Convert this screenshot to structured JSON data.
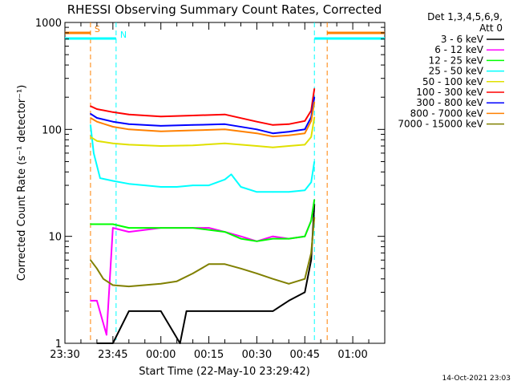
{
  "chart_data": {
    "type": "line",
    "title": "RHESSI Observing Summary Count Rates, Corrected",
    "xlabel": "Start Time (22-May-10 23:29:42)",
    "ylabel": "Corrected Count Rate (s⁻¹ detector⁻¹)",
    "y_scale": "log",
    "ylim": [
      1,
      1000
    ],
    "xlim": [
      "23:30",
      "01:10"
    ],
    "x_ticks": [
      "23:30",
      "23:45",
      "00:00",
      "00:15",
      "00:30",
      "00:45",
      "01:00"
    ],
    "y_ticks": [
      "1",
      "10",
      "100",
      "1000"
    ],
    "legend_header": [
      "Det 1,3,4,5,6,9,",
      "Att 0"
    ],
    "legend_position": "right",
    "footer": "14-Oct-2021 23:03",
    "flags": [
      {
        "label": "S",
        "color": "#ff8000",
        "intervals": [
          [
            "23:30",
            "23:38"
          ],
          [
            "00:52",
            "01:10"
          ]
        ]
      },
      {
        "label": "N",
        "color": "#00ffff",
        "intervals": [
          [
            "23:30",
            "23:46"
          ],
          [
            "00:48",
            "01:10"
          ]
        ]
      }
    ],
    "series": [
      {
        "name": "3 - 6 keV",
        "color": "#000000",
        "x": [
          "23:40",
          "23:45",
          "23:50",
          "00:00",
          "00:06",
          "00:08",
          "00:15",
          "00:25",
          "00:35",
          "00:40",
          "00:45",
          "00:47",
          "00:48"
        ],
        "y": [
          1,
          1,
          2,
          2,
          1,
          2,
          2,
          2,
          2,
          2.5,
          3,
          6,
          20
        ]
      },
      {
        "name": "6 - 12 keV",
        "color": "#ff00ff",
        "x": [
          "23:38",
          "23:40",
          "23:43",
          "23:45",
          "23:50",
          "00:00",
          "00:10",
          "00:15",
          "00:20",
          "00:25",
          "00:30",
          "00:35",
          "00:40",
          "00:45",
          "00:47",
          "00:48"
        ],
        "y": [
          2.5,
          2.5,
          1.2,
          12,
          11,
          12,
          12,
          12,
          11,
          10,
          9,
          10,
          9.5,
          10,
          14,
          22
        ]
      },
      {
        "name": "12 - 25 keV",
        "color": "#00ff00",
        "x": [
          "23:38",
          "23:45",
          "23:50",
          "00:00",
          "00:10",
          "00:20",
          "00:25",
          "00:30",
          "00:35",
          "00:40",
          "00:45",
          "00:47",
          "00:48"
        ],
        "y": [
          13,
          13,
          12,
          12,
          12,
          11,
          9.5,
          9,
          9.5,
          9.5,
          10,
          14,
          22
        ]
      },
      {
        "name": "25 - 50 keV",
        "color": "#00ffff",
        "x": [
          "23:38",
          "23:39",
          "23:41",
          "23:45",
          "23:50",
          "23:55",
          "00:00",
          "00:05",
          "00:10",
          "00:15",
          "00:20",
          "00:22",
          "00:25",
          "00:30",
          "00:35",
          "00:40",
          "00:45",
          "00:47",
          "00:48"
        ],
        "y": [
          110,
          60,
          35,
          33,
          31,
          30,
          29,
          29,
          30,
          30,
          34,
          38,
          29,
          26,
          26,
          26,
          27,
          32,
          50
        ]
      },
      {
        "name": "50 - 100 keV",
        "color": "#e0e000",
        "x": [
          "23:38",
          "23:40",
          "23:45",
          "23:50",
          "00:00",
          "00:10",
          "00:20",
          "00:30",
          "00:35",
          "00:40",
          "00:45",
          "00:47",
          "00:48"
        ],
        "y": [
          85,
          78,
          74,
          72,
          70,
          71,
          74,
          70,
          68,
          70,
          72,
          85,
          130
        ]
      },
      {
        "name": "100 - 300 keV",
        "color": "#ff0000",
        "x": [
          "23:38",
          "23:40",
          "23:45",
          "23:50",
          "00:00",
          "00:10",
          "00:20",
          "00:30",
          "00:35",
          "00:40",
          "00:45",
          "00:47",
          "00:48"
        ],
        "y": [
          165,
          155,
          145,
          138,
          132,
          135,
          138,
          118,
          110,
          112,
          120,
          150,
          240
        ]
      },
      {
        "name": "300 - 800 keV",
        "color": "#0000ff",
        "x": [
          "23:38",
          "23:40",
          "23:45",
          "23:50",
          "00:00",
          "00:10",
          "00:20",
          "00:30",
          "00:35",
          "00:40",
          "00:45",
          "00:47",
          "00:48"
        ],
        "y": [
          140,
          128,
          118,
          112,
          108,
          110,
          112,
          100,
          92,
          95,
          100,
          130,
          200
        ]
      },
      {
        "name": "800 - 7000 keV",
        "color": "#ff8000",
        "x": [
          "23:38",
          "23:40",
          "23:45",
          "23:50",
          "00:00",
          "00:10",
          "00:20",
          "00:30",
          "00:35",
          "00:40",
          "00:45",
          "00:47",
          "00:48"
        ],
        "y": [
          128,
          118,
          106,
          100,
          96,
          98,
          100,
          92,
          86,
          88,
          92,
          120,
          180
        ]
      },
      {
        "name": "7000 - 15000 keV",
        "color": "#808000",
        "x": [
          "23:38",
          "23:40",
          "23:42",
          "23:45",
          "23:50",
          "00:00",
          "00:05",
          "00:10",
          "00:15",
          "00:20",
          "00:25",
          "00:30",
          "00:35",
          "00:40",
          "00:45",
          "00:47",
          "00:48"
        ],
        "y": [
          6,
          5,
          4,
          3.5,
          3.4,
          3.6,
          3.8,
          4.5,
          5.5,
          5.5,
          5,
          4.5,
          4,
          3.6,
          4,
          7,
          15
        ]
      }
    ]
  }
}
